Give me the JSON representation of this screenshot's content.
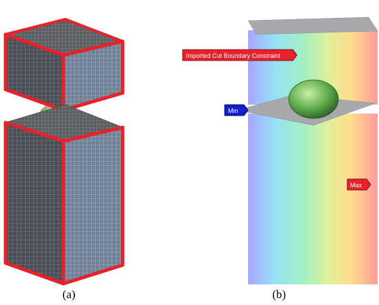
{
  "panels": [
    {
      "label": "(a)"
    },
    {
      "label": "(b)",
      "annotations": [
        "Imported Cut Boundary Constraint",
        "Min",
        "Max"
      ]
    }
  ]
}
